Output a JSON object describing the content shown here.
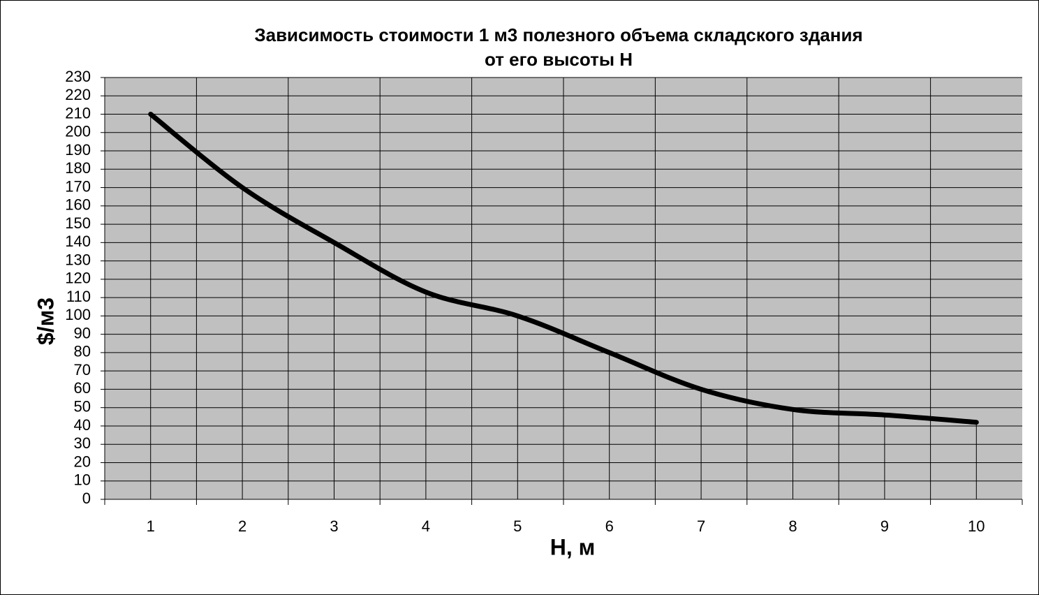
{
  "chart_data": {
    "type": "line",
    "title": [
      "Зависимость стоимости 1 м3 полезного объема складского здания",
      "от его высоты H"
    ],
    "x_label": "H, м",
    "y_label": "$/м3",
    "categories": [
      "1",
      "2",
      "3",
      "4",
      "5",
      "6",
      "7",
      "8",
      "9",
      "10"
    ],
    "series": [
      {
        "name": "$/м3",
        "color": "#000000",
        "values": [
          210,
          170,
          140,
          113,
          100,
          80,
          60,
          49,
          46,
          42
        ]
      }
    ],
    "ylim": [
      0,
      230
    ],
    "yticks": [
      0,
      10,
      20,
      30,
      40,
      50,
      60,
      70,
      80,
      90,
      100,
      110,
      120,
      130,
      140,
      150,
      160,
      170,
      180,
      190,
      200,
      210,
      220,
      230
    ],
    "grid": true,
    "smooth": true,
    "drop_lines": true,
    "plot_background": "#c0c0c0"
  }
}
